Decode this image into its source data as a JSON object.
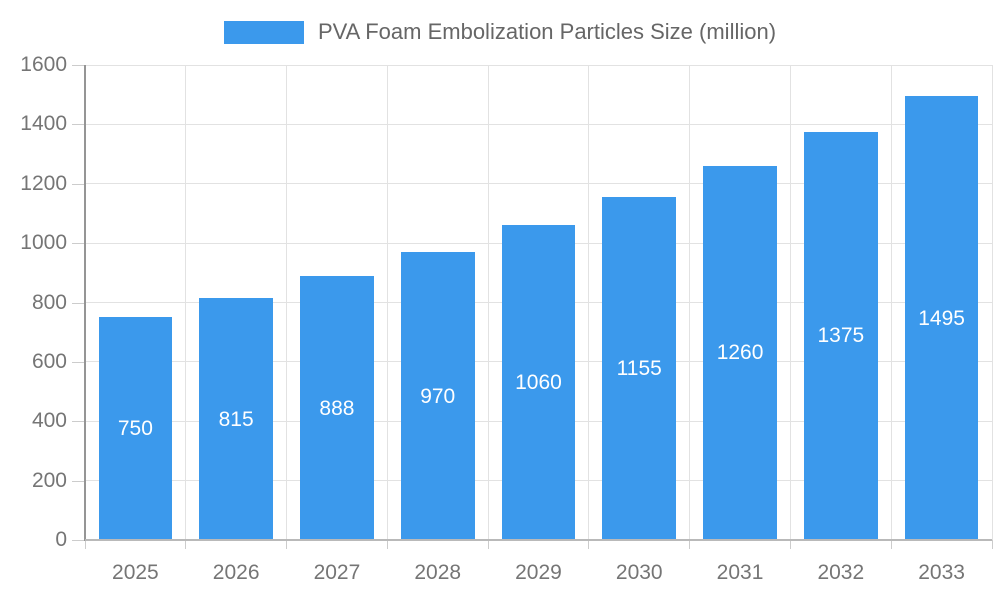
{
  "chart_data": {
    "type": "bar",
    "title": "PVA Foam Embolization Particles Size (million)",
    "categories": [
      "2025",
      "2026",
      "2027",
      "2028",
      "2029",
      "2030",
      "2031",
      "2032",
      "2033"
    ],
    "values": [
      750,
      815,
      888,
      970,
      1060,
      1155,
      1260,
      1375,
      1495
    ],
    "xlabel": "",
    "ylabel": "",
    "ylim": [
      0,
      1600
    ],
    "yticks": [
      0,
      200,
      400,
      600,
      800,
      1000,
      1200,
      1400,
      1600
    ],
    "grid": true,
    "legend_position": "top-center",
    "value_labels": "centered-inside-bars",
    "colors": {
      "bar": "#3b99ec",
      "bar_value_text": "#ffffff",
      "axis_text": "#757575",
      "legend_text": "#666666",
      "gridline": "#e2e2e2",
      "tick": "#cccccc",
      "x_axis_line": "#b9b9b9",
      "y_axis_line": "#959595"
    }
  }
}
